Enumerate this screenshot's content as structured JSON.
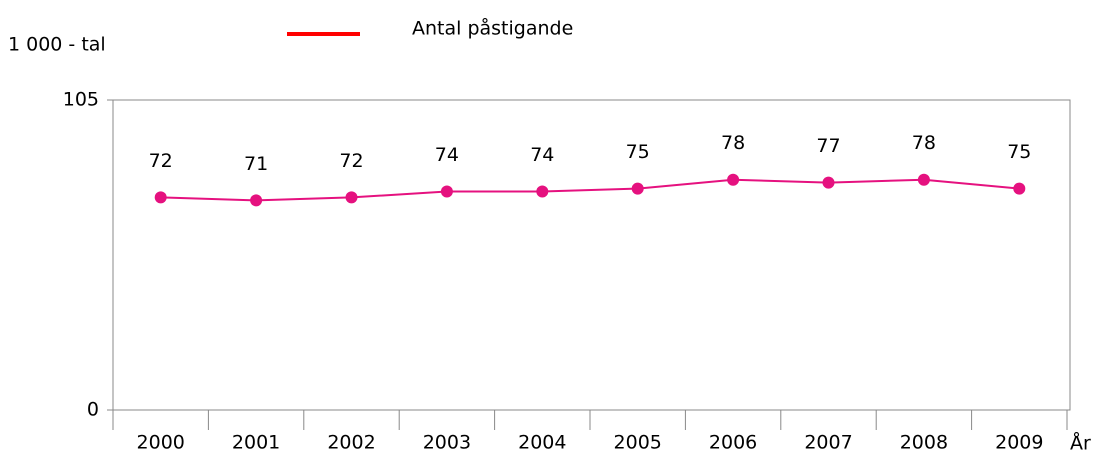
{
  "chart_data": {
    "type": "line",
    "y_label": "1 000 - tal",
    "x_label": "År",
    "categories": [
      "2000",
      "2001",
      "2002",
      "2003",
      "2004",
      "2005",
      "2006",
      "2007",
      "2008",
      "2009"
    ],
    "series": [
      {
        "name": "Antal påstigande",
        "color": "#e5117f",
        "legend_color": "#ff0000",
        "values": [
          72,
          71,
          72,
          74,
          74,
          75,
          78,
          77,
          78,
          75
        ]
      }
    ],
    "ylim": [
      0,
      105
    ],
    "yticks": [
      0,
      105
    ],
    "grid": false,
    "data_labels": true,
    "legend": "top"
  }
}
